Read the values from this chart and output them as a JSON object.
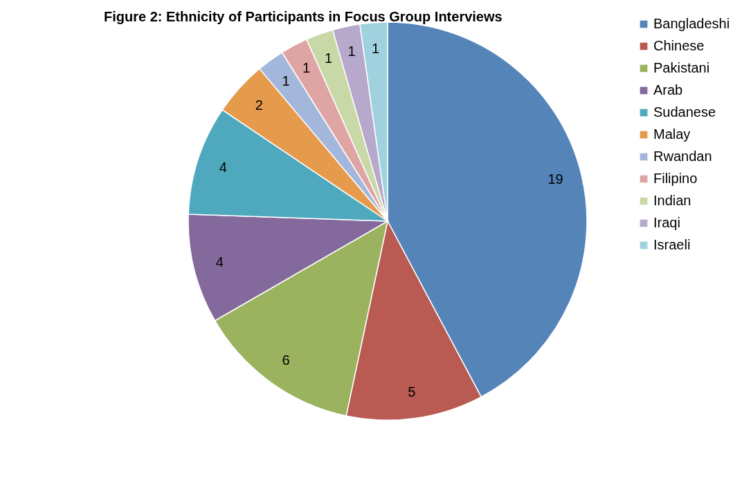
{
  "chart_data": {
    "type": "pie",
    "title": "Figure 2: Ethnicity of Participants in Focus Group Interviews",
    "categories": [
      "Bangladeshi",
      "Chinese",
      "Pakistani",
      "Arab",
      "Sudanese",
      "Malay",
      "Rwandan",
      "Filipino",
      "Indian",
      "Iraqi",
      "Israeli"
    ],
    "values": [
      19,
      5,
      6,
      4,
      4,
      2,
      1,
      1,
      1,
      1,
      1
    ],
    "colors": [
      "#5584b9",
      "#b95b52",
      "#9bb35e",
      "#846a9c",
      "#4ea9be",
      "#e69a4c",
      "#a3b7dc",
      "#dfa5a4",
      "#c8d8a6",
      "#b7a9cb",
      "#9fd1de"
    ],
    "data_labels": true,
    "legend": "right"
  }
}
